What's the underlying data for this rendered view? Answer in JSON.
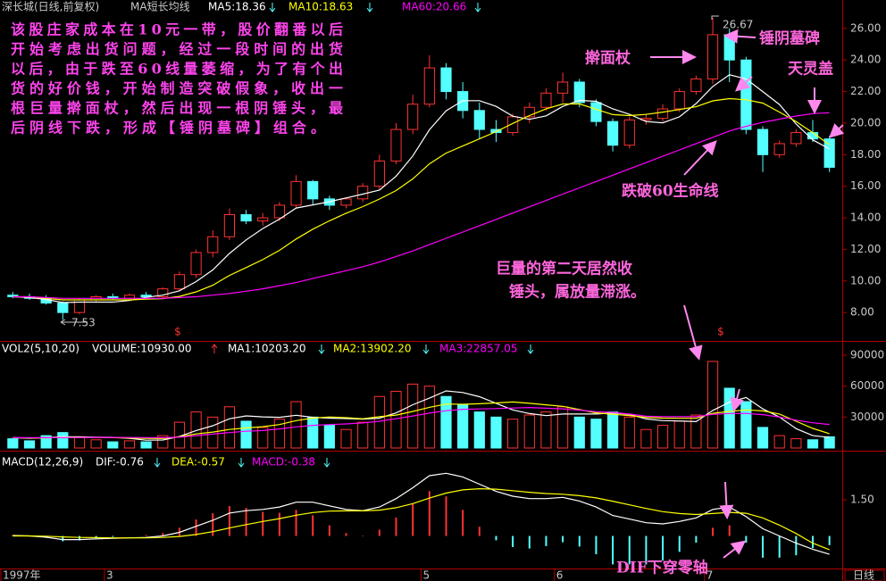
{
  "chart_data": [
    {
      "type": "candlestick",
      "title": "深长城(日线,前复权)",
      "subtitle": "MA短长均线",
      "categories": [
        "1997年",
        null,
        null,
        null,
        null,
        null,
        "3",
        null,
        null,
        null,
        null,
        null,
        null,
        null,
        null,
        null,
        null,
        null,
        null,
        null,
        null,
        null,
        null,
        null,
        null,
        "5",
        null,
        null,
        null,
        null,
        null,
        null,
        null,
        "6",
        null,
        null,
        null,
        null,
        null,
        null,
        null,
        null,
        "7",
        null,
        null,
        null,
        null,
        null,
        null,
        null
      ],
      "open": [
        9.1,
        9.0,
        8.9,
        8.6,
        8.0,
        8.8,
        9.0,
        8.9,
        9.1,
        9.0,
        9.5,
        10.4,
        11.8,
        12.8,
        14.2,
        13.8,
        14.0,
        14.8,
        16.3,
        15.2,
        14.8,
        15.2,
        16.0,
        17.6,
        19.6,
        21.2,
        23.5,
        22.0,
        20.8,
        19.6,
        19.4,
        20.4,
        21.0,
        21.9,
        22.6,
        21.3,
        20.1,
        18.6,
        20.2,
        20.3,
        20.9,
        22.0,
        22.8,
        25.6,
        24.0,
        19.6,
        18.0,
        18.7,
        19.4,
        19.0
      ],
      "high": [
        9.3,
        9.2,
        9.1,
        8.7,
        8.9,
        9.1,
        9.2,
        9.2,
        9.3,
        9.6,
        10.6,
        12.0,
        13.2,
        14.6,
        14.5,
        14.3,
        15.0,
        16.7,
        16.4,
        15.4,
        15.3,
        16.2,
        18.0,
        20.0,
        21.8,
        24.3,
        23.8,
        22.6,
        21.3,
        20.2,
        20.6,
        21.3,
        22.2,
        23.2,
        22.8,
        21.5,
        20.3,
        20.4,
        20.6,
        21.2,
        22.2,
        23.0,
        26.67,
        26.0,
        24.2,
        19.8,
        18.9,
        19.6,
        20.2,
        19.2
      ],
      "low": [
        8.9,
        8.8,
        8.5,
        7.53,
        7.9,
        8.7,
        8.8,
        8.8,
        9.0,
        8.9,
        9.4,
        10.2,
        11.5,
        12.6,
        13.6,
        13.5,
        13.8,
        14.6,
        14.8,
        14.5,
        14.6,
        15.0,
        15.8,
        17.4,
        19.3,
        21.0,
        21.5,
        20.3,
        19.0,
        18.8,
        19.2,
        20.0,
        20.8,
        21.3,
        21.0,
        19.8,
        18.2,
        18.4,
        19.9,
        20.1,
        20.7,
        21.8,
        22.5,
        22.6,
        19.3,
        16.9,
        17.8,
        18.5,
        18.8,
        16.9
      ],
      "close": [
        9.0,
        8.9,
        8.6,
        8.0,
        8.8,
        9.0,
        8.9,
        9.1,
        9.0,
        9.5,
        10.4,
        11.8,
        12.8,
        14.2,
        13.8,
        14.0,
        14.8,
        16.3,
        15.2,
        14.8,
        15.2,
        16.0,
        17.6,
        19.6,
        21.2,
        23.5,
        22.0,
        20.8,
        19.6,
        19.4,
        20.4,
        21.0,
        21.9,
        22.6,
        21.3,
        20.1,
        18.6,
        20.2,
        20.3,
        20.9,
        22.0,
        22.8,
        25.6,
        24.0,
        19.6,
        18.0,
        18.7,
        19.4,
        19.0,
        17.2
      ],
      "up_color": "#ff3232",
      "down_color": "#54ffff",
      "series": [
        {
          "name": "MA5:18.36",
          "color": "#ffffff",
          "style": "line",
          "values": [
            9.0,
            8.95,
            8.83,
            8.63,
            8.66,
            8.66,
            8.66,
            8.76,
            8.96,
            9.1,
            9.38,
            9.96,
            10.7,
            11.74,
            12.6,
            13.32,
            13.92,
            14.62,
            14.82,
            15.02,
            15.26,
            15.5,
            15.76,
            16.64,
            17.92,
            19.58,
            20.78,
            21.42,
            21.42,
            21.06,
            20.44,
            20.24,
            20.46,
            21.06,
            21.44,
            21.38,
            20.9,
            20.56,
            20.1,
            20.02,
            20.4,
            21.24,
            22.32,
            23.06,
            22.8,
            22.0,
            21.18,
            19.94,
            18.94,
            18.36
          ]
        },
        {
          "name": "MA10:18.63",
          "color": "#ffff00",
          "style": "line",
          "values": [
            9.0,
            9.0,
            8.9,
            8.8,
            8.8,
            8.8,
            8.8,
            8.8,
            8.85,
            8.88,
            9.02,
            9.31,
            9.73,
            10.35,
            10.85,
            11.35,
            11.94,
            12.66,
            13.28,
            13.81,
            14.29,
            14.71,
            15.19,
            15.73,
            16.47,
            17.42,
            18.1,
            18.55,
            19.0,
            19.46,
            19.98,
            20.48,
            20.91,
            21.21,
            21.22,
            20.88,
            20.54,
            20.48,
            20.55,
            20.7,
            20.86,
            21.04,
            21.41,
            21.55,
            21.48,
            21.27,
            20.7,
            20.1,
            19.4,
            18.63
          ]
        },
        {
          "name": "MA60:20.66",
          "color": "#ff00ff",
          "style": "line",
          "values": [
            9.0,
            9.0,
            8.95,
            8.9,
            8.9,
            8.9,
            8.9,
            8.9,
            8.9,
            8.9,
            8.95,
            9.0,
            9.1,
            9.2,
            9.35,
            9.5,
            9.7,
            9.9,
            10.15,
            10.4,
            10.65,
            10.9,
            11.2,
            11.55,
            11.9,
            12.3,
            12.7,
            13.1,
            13.5,
            13.9,
            14.3,
            14.7,
            15.1,
            15.5,
            15.9,
            16.3,
            16.7,
            17.1,
            17.5,
            17.9,
            18.3,
            18.7,
            19.1,
            19.5,
            19.8,
            20.05,
            20.25,
            20.45,
            20.6,
            20.66
          ]
        }
      ],
      "ylim": [
        6.2,
        27.8
      ],
      "yticks": [
        {
          "value": 8,
          "label": "8.00"
        },
        {
          "value": 10,
          "label": "10.00"
        },
        {
          "value": 12,
          "label": "12.00"
        },
        {
          "value": 14,
          "label": "14.00"
        },
        {
          "value": 16,
          "label": "16.00"
        },
        {
          "value": 18,
          "label": "18.00"
        },
        {
          "value": 20,
          "label": "20.00"
        },
        {
          "value": 22,
          "label": "22.00"
        },
        {
          "value": 24,
          "label": "24.00"
        },
        {
          "value": 26,
          "label": "26.00"
        }
      ],
      "signal_marks": [
        "$",
        "$"
      ],
      "period_label": "日线",
      "note": [
        "该股庄家成本在10元一带，股价翻番以后",
        "开始考虑出货问题，经过一段时间的出货",
        "以后，由于跌至60线量萎缩，为了有个出",
        "货的好价钱，开始制造突破假象，收出一",
        "根巨量擀面杖，然后出现一根阴锤头，最",
        "后阴线下跌，形成【锤阴墓碑】组合。"
      ],
      "annotations": [
        "擀面杖",
        "锤阴墓碑",
        "天灵盖",
        "跌破60生命线",
        "巨量的第二天居然收",
        "锤头，属放量滞涨。"
      ]
    },
    {
      "type": "volume",
      "title": "VOL2(5,10,20)",
      "series": [
        {
          "name": "VOLUME:10930.00",
          "style": "bar",
          "values": [
            9000,
            7000,
            12000,
            15000,
            11000,
            8000,
            6000,
            7000,
            6000,
            12000,
            25000,
            35000,
            30000,
            40000,
            26000,
            20000,
            28000,
            45000,
            30000,
            22000,
            18000,
            25000,
            50000,
            55000,
            62000,
            60000,
            50000,
            42000,
            35000,
            30000,
            28000,
            32000,
            35000,
            40000,
            30000,
            28000,
            35000,
            30000,
            18000,
            22000,
            26000,
            32000,
            84000,
            58000,
            45000,
            20000,
            12000,
            9000,
            8000,
            10930
          ]
        },
        {
          "name": "MA1:10203.20",
          "color": "#ffffff",
          "style": "line",
          "values": [
            10000,
            9500,
            10000,
            11000,
            10800,
            10600,
            10400,
            9400,
            7600,
            7800,
            11200,
            17000,
            21600,
            28400,
            31200,
            30200,
            29800,
            31800,
            29800,
            29000,
            28600,
            28000,
            29000,
            34000,
            42000,
            48400,
            55400,
            53800,
            49800,
            43400,
            37000,
            33400,
            31400,
            33000,
            33000,
            33000,
            34000,
            32600,
            28200,
            26600,
            26200,
            25600,
            36400,
            44400,
            49000,
            38000,
            30000,
            18800,
            12000,
            10203.2
          ]
        },
        {
          "name": "MA2:13902.20",
          "color": "#ffff00",
          "style": "line",
          "values": [
            10000,
            9800,
            9900,
            10200,
            10300,
            10200,
            10000,
            9700,
            9400,
            9300,
            10900,
            13700,
            15500,
            18000,
            19500,
            20700,
            22800,
            26600,
            29000,
            30100,
            29400,
            28400,
            30400,
            31900,
            35500,
            39500,
            42700,
            42400,
            42900,
            43700,
            44700,
            43400,
            41900,
            40400,
            37300,
            34100,
            32700,
            31500,
            29800,
            29000,
            28800,
            28800,
            33700,
            35500,
            37000,
            36000,
            33000,
            26000,
            19000,
            13902.2
          ]
        },
        {
          "name": "MA3:22857.05",
          "color": "#ff00ff",
          "style": "line",
          "values": [
            10000,
            10000,
            10000,
            10100,
            10200,
            10300,
            10300,
            10200,
            10100,
            10000,
            10500,
            12000,
            13500,
            15000,
            16300,
            17000,
            18500,
            20500,
            22000,
            22800,
            23400,
            24300,
            26000,
            28400,
            31100,
            33800,
            36200,
            37600,
            37900,
            38300,
            38800,
            39300,
            38600,
            38000,
            36800,
            35200,
            34500,
            33000,
            30800,
            30400,
            30400,
            30400,
            32600,
            33500,
            33600,
            32400,
            30000,
            27000,
            24500,
            22857.05
          ]
        }
      ],
      "ylim": [
        0,
        103000
      ],
      "yticks": [
        30000,
        60000,
        90000
      ]
    },
    {
      "type": "macd",
      "title": "MACD(12,26,9)",
      "series": [
        {
          "name": "DIF:-0.76",
          "color": "#ffffff",
          "style": "line",
          "values": [
            0.02,
            0.0,
            -0.05,
            -0.15,
            -0.15,
            -0.12,
            -0.1,
            -0.08,
            -0.06,
            0.0,
            0.15,
            0.4,
            0.65,
            0.95,
            1.05,
            1.1,
            1.2,
            1.4,
            1.4,
            1.25,
            1.1,
            1.05,
            1.2,
            1.55,
            2.0,
            2.5,
            2.6,
            2.45,
            2.15,
            1.85,
            1.65,
            1.55,
            1.55,
            1.6,
            1.45,
            1.2,
            0.85,
            0.7,
            0.55,
            0.5,
            0.6,
            0.75,
            1.1,
            1.2,
            0.8,
            0.3,
            0.0,
            -0.3,
            -0.55,
            -0.76
          ]
        },
        {
          "name": "DEA:-0.57",
          "color": "#ffff00",
          "style": "line",
          "values": [
            0.0,
            0.0,
            -0.01,
            -0.04,
            -0.06,
            -0.07,
            -0.08,
            -0.08,
            -0.08,
            -0.06,
            -0.02,
            0.06,
            0.18,
            0.33,
            0.47,
            0.6,
            0.72,
            0.86,
            0.97,
            1.03,
            1.04,
            1.04,
            1.07,
            1.17,
            1.34,
            1.57,
            1.78,
            1.91,
            1.96,
            1.94,
            1.88,
            1.81,
            1.76,
            1.73,
            1.67,
            1.58,
            1.44,
            1.29,
            1.14,
            1.01,
            0.93,
            0.89,
            0.93,
            0.98,
            0.94,
            0.75,
            0.45,
            0.1,
            -0.3,
            -0.57
          ]
        },
        {
          "name": "MACD:-0.38",
          "color": "#ff3232",
          "negative_color": "#54ffff",
          "style": "bar",
          "values": [
            0.04,
            0.0,
            -0.08,
            -0.22,
            -0.18,
            -0.1,
            -0.04,
            0.0,
            0.04,
            0.12,
            0.34,
            0.68,
            0.94,
            1.24,
            1.16,
            1.0,
            0.96,
            1.08,
            0.86,
            0.44,
            0.12,
            0.02,
            0.26,
            0.76,
            1.32,
            1.86,
            1.64,
            1.08,
            0.38,
            -0.18,
            -0.46,
            -0.52,
            -0.42,
            -0.26,
            -0.44,
            -0.76,
            -1.18,
            -1.18,
            -1.18,
            -1.02,
            -0.66,
            -0.28,
            0.34,
            0.44,
            -0.28,
            -0.9,
            -0.9,
            -0.8,
            -0.5,
            -0.38
          ]
        }
      ],
      "ylim": [
        -1.35,
        3.5
      ],
      "yticks": [
        {
          "value": 1.5,
          "label": "1.50"
        }
      ],
      "annotations": [
        "DIF下穿零轴"
      ]
    }
  ]
}
